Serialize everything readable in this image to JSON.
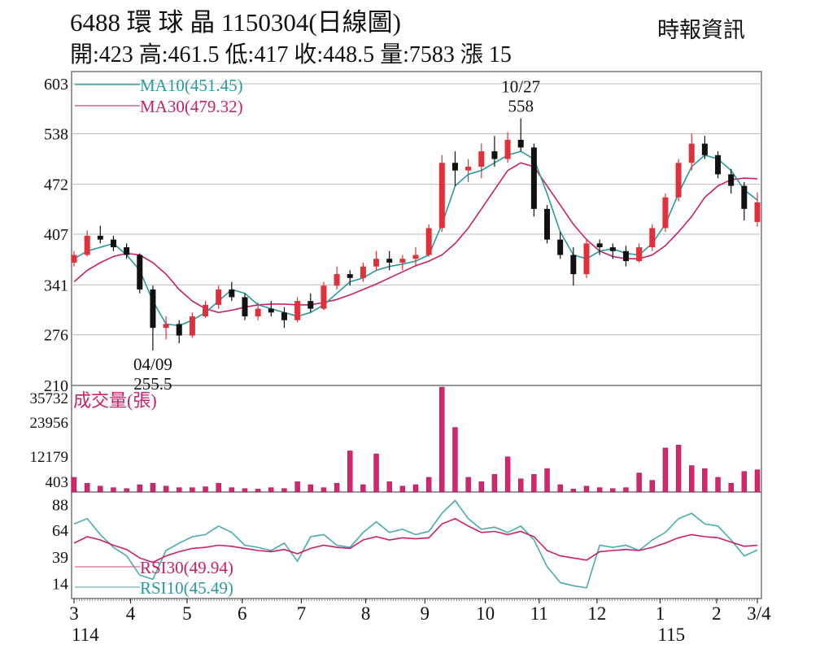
{
  "header": {
    "title": "6488  環 球 晶 1150304(日線圖)",
    "quote": "開:423 高:461.5 低:417 收:448.5 量:7583 漲 15",
    "source": "時報資訊"
  },
  "colors": {
    "up": "#e0303a",
    "down": "#111111",
    "ma10": "#2a9aa0",
    "ma30": "#c8206a",
    "volume": "#d4266e",
    "grid": "#bbbbbb"
  },
  "chart_data": [
    {
      "type": "candlestick",
      "panel": "price",
      "ylim": [
        210,
        603
      ],
      "yticks": [
        603,
        538,
        472,
        407,
        341,
        276,
        210
      ],
      "grid": true,
      "legend": [
        {
          "name": "MA10(451.45)",
          "key": "ma10"
        },
        {
          "name": "MA30(479.32)",
          "key": "ma30"
        }
      ],
      "annotations": [
        {
          "date": "10/27",
          "value": "558",
          "index": 34,
          "position": "above"
        },
        {
          "date": "04/09",
          "value": "255.5",
          "index": 6,
          "position": "below"
        }
      ],
      "ohlc": [
        [
          370,
          385,
          365,
          380
        ],
        [
          380,
          412,
          378,
          405
        ],
        [
          405,
          418,
          395,
          400
        ],
        [
          400,
          405,
          385,
          390
        ],
        [
          390,
          395,
          375,
          380
        ],
        [
          380,
          382,
          330,
          335
        ],
        [
          335,
          340,
          255.5,
          285
        ],
        [
          285,
          300,
          270,
          290
        ],
        [
          290,
          295,
          265,
          275
        ],
        [
          275,
          305,
          272,
          300
        ],
        [
          300,
          320,
          298,
          315
        ],
        [
          315,
          340,
          310,
          335
        ],
        [
          335,
          345,
          320,
          325
        ],
        [
          325,
          330,
          295,
          300
        ],
        [
          300,
          318,
          295,
          310
        ],
        [
          310,
          320,
          300,
          305
        ],
        [
          305,
          312,
          285,
          295
        ],
        [
          295,
          325,
          292,
          320
        ],
        [
          320,
          330,
          305,
          310
        ],
        [
          310,
          345,
          308,
          340
        ],
        [
          340,
          365,
          335,
          355
        ],
        [
          355,
          360,
          340,
          350
        ],
        [
          350,
          370,
          345,
          365
        ],
        [
          365,
          385,
          360,
          375
        ],
        [
          375,
          385,
          360,
          370
        ],
        [
          370,
          380,
          360,
          375
        ],
        [
          375,
          390,
          365,
          380
        ],
        [
          380,
          420,
          378,
          415
        ],
        [
          415,
          510,
          410,
          500
        ],
        [
          500,
          515,
          470,
          490
        ],
        [
          490,
          505,
          475,
          495
        ],
        [
          495,
          525,
          480,
          515
        ],
        [
          515,
          535,
          495,
          505
        ],
        [
          505,
          540,
          500,
          530
        ],
        [
          530,
          558,
          515,
          520
        ],
        [
          520,
          525,
          430,
          440
        ],
        [
          440,
          445,
          395,
          400
        ],
        [
          400,
          410,
          375,
          380
        ],
        [
          380,
          390,
          340,
          355
        ],
        [
          355,
          400,
          350,
          395
        ],
        [
          395,
          400,
          380,
          390
        ],
        [
          390,
          395,
          375,
          385
        ],
        [
          385,
          392,
          365,
          372
        ],
        [
          372,
          395,
          370,
          390
        ],
        [
          390,
          420,
          385,
          415
        ],
        [
          415,
          460,
          410,
          455
        ],
        [
          455,
          505,
          450,
          500
        ],
        [
          500,
          538,
          490,
          525
        ],
        [
          525,
          535,
          505,
          510
        ],
        [
          510,
          515,
          480,
          485
        ],
        [
          485,
          492,
          460,
          470
        ],
        [
          470,
          475,
          425,
          440
        ],
        [
          423,
          461.5,
          417,
          448.5
        ]
      ],
      "ma10": [
        375,
        385,
        390,
        395,
        380,
        360,
        320,
        290,
        288,
        295,
        305,
        320,
        335,
        330,
        315,
        310,
        305,
        300,
        305,
        315,
        330,
        345,
        350,
        360,
        365,
        368,
        372,
        380,
        420,
        470,
        485,
        490,
        500,
        510,
        515,
        505,
        460,
        410,
        380,
        375,
        385,
        388,
        382,
        380,
        395,
        420,
        460,
        495,
        510,
        505,
        490,
        465,
        451.45
      ],
      "ma30": [
        345,
        360,
        370,
        378,
        382,
        380,
        370,
        355,
        335,
        320,
        310,
        305,
        308,
        312,
        315,
        316,
        316,
        315,
        315,
        318,
        322,
        328,
        335,
        342,
        350,
        358,
        366,
        372,
        380,
        395,
        415,
        440,
        465,
        490,
        500,
        495,
        470,
        445,
        420,
        400,
        385,
        378,
        375,
        375,
        380,
        392,
        410,
        430,
        455,
        470,
        478,
        480,
        479.32
      ]
    },
    {
      "type": "bar",
      "panel": "volume",
      "label": "成交量(張)",
      "yticks": [
        35732,
        23956,
        12179,
        403
      ],
      "ylim": [
        0,
        35732
      ],
      "values": [
        5000,
        3000,
        2000,
        1500,
        1200,
        2500,
        3000,
        2000,
        1500,
        1500,
        1800,
        3000,
        1500,
        1200,
        1000,
        1500,
        1200,
        3500,
        2500,
        1500,
        3000,
        14000,
        2500,
        13000,
        3500,
        2000,
        2500,
        5000,
        35732,
        22000,
        5000,
        3500,
        6000,
        12000,
        4500,
        6000,
        8000,
        2500,
        1000,
        2000,
        1500,
        1200,
        1500,
        6500,
        4000,
        15000,
        16000,
        9000,
        8000,
        5000,
        3000,
        7000,
        7583
      ]
    },
    {
      "type": "line",
      "panel": "rsi",
      "ylim": [
        0,
        100
      ],
      "yticks": [
        88,
        64,
        39,
        14
      ],
      "legend": [
        {
          "name": "RSI30(49.94)",
          "key": "rsi30"
        },
        {
          "name": "RSI10(45.49)",
          "key": "rsi10"
        }
      ],
      "rsi10": [
        70,
        75,
        60,
        48,
        40,
        22,
        18,
        45,
        52,
        58,
        60,
        68,
        62,
        50,
        48,
        45,
        52,
        35,
        58,
        60,
        50,
        48,
        62,
        72,
        62,
        65,
        60,
        63,
        80,
        92,
        75,
        65,
        67,
        62,
        68,
        55,
        30,
        15,
        12,
        10,
        50,
        48,
        50,
        45,
        55,
        62,
        75,
        80,
        70,
        68,
        55,
        40,
        45.49
      ],
      "rsi30": [
        52,
        58,
        55,
        50,
        46,
        38,
        34,
        40,
        44,
        47,
        48,
        50,
        49,
        47,
        45,
        44,
        46,
        42,
        47,
        50,
        48,
        47,
        55,
        58,
        55,
        57,
        56,
        57,
        70,
        75,
        68,
        62,
        63,
        60,
        63,
        58,
        45,
        40,
        38,
        36,
        44,
        45,
        46,
        45,
        48,
        52,
        57,
        60,
        58,
        57,
        53,
        49,
        49.94
      ]
    }
  ],
  "x_axis": {
    "ticks": [
      {
        "label": "3",
        "at": 0
      },
      {
        "label": "4",
        "at": 4.3
      },
      {
        "label": "5",
        "at": 8.6
      },
      {
        "label": "6",
        "at": 12.8
      },
      {
        "label": "7",
        "at": 17.3
      },
      {
        "label": "8",
        "at": 22.2
      },
      {
        "label": "9",
        "at": 26.7
      },
      {
        "label": "10",
        "at": 31.3
      },
      {
        "label": "11",
        "at": 35.4
      },
      {
        "label": "12",
        "at": 39.8
      },
      {
        "label": "1",
        "at": 44.6
      },
      {
        "label": "2",
        "at": 48.9
      },
      {
        "label": "3/4",
        "at": 52
      }
    ],
    "years": [
      {
        "label": "114",
        "at": 0
      },
      {
        "label": "115",
        "at": 44.6
      }
    ]
  }
}
